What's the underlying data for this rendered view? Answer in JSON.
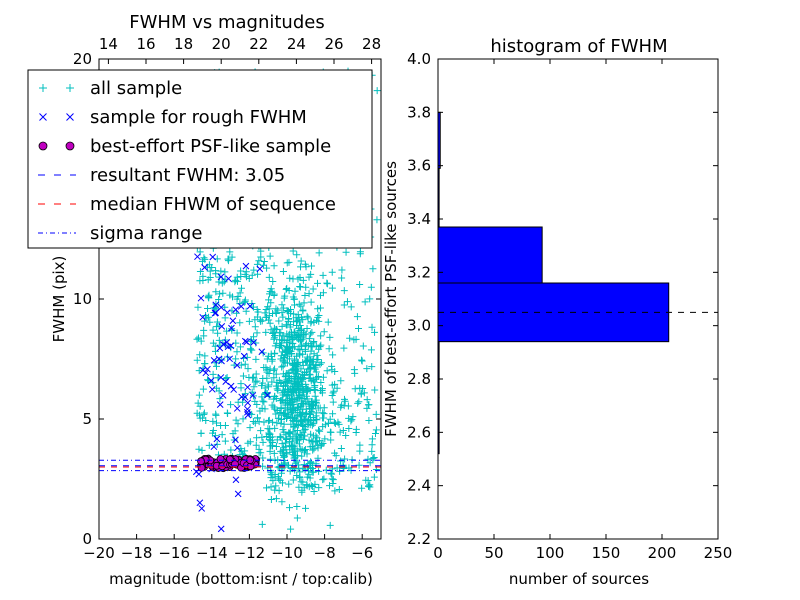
{
  "chart_data": [
    {
      "type": "scatter",
      "title": "FWHM vs magnitudes",
      "xlabel": "magnitude (bottom:isnt / top:calib)",
      "ylabel": "FWHM (pix)",
      "xlim": [
        -20,
        -5
      ],
      "ylim": [
        0,
        20
      ],
      "x_ticks": [
        -20,
        -18,
        -16,
        -14,
        -12,
        -10,
        -8,
        -6
      ],
      "x_tick_labels": [
        "−20",
        "−18",
        "−16",
        "−14",
        "−12",
        "−10",
        "−8",
        "−6"
      ],
      "y_ticks": [
        0,
        5,
        10,
        20
      ],
      "y_tick_labels": [
        "0",
        "5",
        "10",
        "20"
      ],
      "top_axis": {
        "ticks": [
          14,
          16,
          18,
          20,
          22,
          24,
          26,
          28
        ],
        "offset": 33.5
      },
      "lines": {
        "resultant_fwhm": 3.05,
        "median_fwhm": 3.0,
        "sigma_range": [
          2.85,
          3.28
        ]
      },
      "series": [
        {
          "name": "all sample",
          "marker": "+",
          "color": "#00bfbf",
          "clusters": [
            {
              "n": 200,
              "x_range": [
                -14.8,
                -13.3
              ],
              "y_range": [
                3.0,
                19.5
              ]
            },
            {
              "n": 220,
              "x_range": [
                -13.3,
                -11.5
              ],
              "y_range": [
                3.0,
                19.5
              ]
            },
            {
              "n": 120,
              "x_range": [
                -11.5,
                -10.6
              ],
              "y_range": [
                3.0,
                19.5
              ]
            },
            {
              "n": 650,
              "x_mean": -9.5,
              "x_sd": 0.8,
              "y_mean": 6.2,
              "y_sd": 2.2
            },
            {
              "n": 200,
              "x_range": [
                -11.0,
                -5.2
              ],
              "y_range": [
                2.0,
                6.5
              ]
            },
            {
              "n": 140,
              "x_range": [
                -11.0,
                -5.2
              ],
              "y_range": [
                6.5,
                19.5
              ]
            }
          ]
        },
        {
          "name": "sample for rough FWHM",
          "marker": "x",
          "color": "#0000ff",
          "clusters": [
            {
              "n": 12,
              "x_mean": -14.5,
              "x_sd": 0.15,
              "y_mean": 8.5,
              "y_sd": 3.3
            },
            {
              "n": 16,
              "x_mean": -13.8,
              "x_sd": 0.25,
              "y_mean": 7.0,
              "y_sd": 2.5
            },
            {
              "n": 30,
              "x_mean": -13.0,
              "x_sd": 0.45,
              "y_mean": 6.5,
              "y_sd": 2.8
            },
            {
              "n": 18,
              "x_mean": -12.0,
              "x_sd": 0.35,
              "y_mean": 7.0,
              "y_sd": 3.2
            }
          ]
        },
        {
          "name": "best-effort PSF-like sample",
          "marker": "o",
          "color": "#bf00bf",
          "clusters": [
            {
              "n": 110,
              "x_range": [
                -14.6,
                -11.6
              ],
              "y_range": [
                2.95,
                3.35
              ]
            }
          ]
        }
      ],
      "legend": {
        "placement": "top-left",
        "entries": [
          "all sample",
          "sample for rough FWHM",
          "best-effort PSF-like sample",
          "resultant FWHM: 3.05",
          "median FHWM of sequence",
          "sigma range"
        ]
      }
    },
    {
      "type": "bar",
      "orientation": "horizontal",
      "title": "histogram of FWHM",
      "xlabel": "number of sources",
      "ylabel": "FWHM of best-effort PSF-like sources",
      "xlim": [
        0,
        250
      ],
      "ylim": [
        2.2,
        4.0
      ],
      "x_ticks": [
        0,
        50,
        100,
        150,
        200,
        250
      ],
      "y_ticks": [
        2.2,
        2.4,
        2.6,
        2.8,
        3.0,
        3.2,
        3.4,
        3.6,
        3.8,
        4.0
      ],
      "y_tick_labels": [
        "2.2",
        "2.4",
        "2.6",
        "2.8",
        "3.0",
        "3.2",
        "3.4",
        "3.6",
        "3.8",
        "4.0"
      ],
      "bins": [
        {
          "y0": 2.52,
          "y1": 2.73,
          "count": 1
        },
        {
          "y0": 2.73,
          "y1": 2.94,
          "count": 1
        },
        {
          "y0": 2.94,
          "y1": 3.16,
          "count": 206
        },
        {
          "y0": 3.16,
          "y1": 3.37,
          "count": 93
        },
        {
          "y0": 3.37,
          "y1": 3.59,
          "count": 1
        },
        {
          "y0": 3.59,
          "y1": 3.8,
          "count": 2
        }
      ],
      "bar_color": "#0000ff",
      "reference_line": 3.05
    }
  ]
}
